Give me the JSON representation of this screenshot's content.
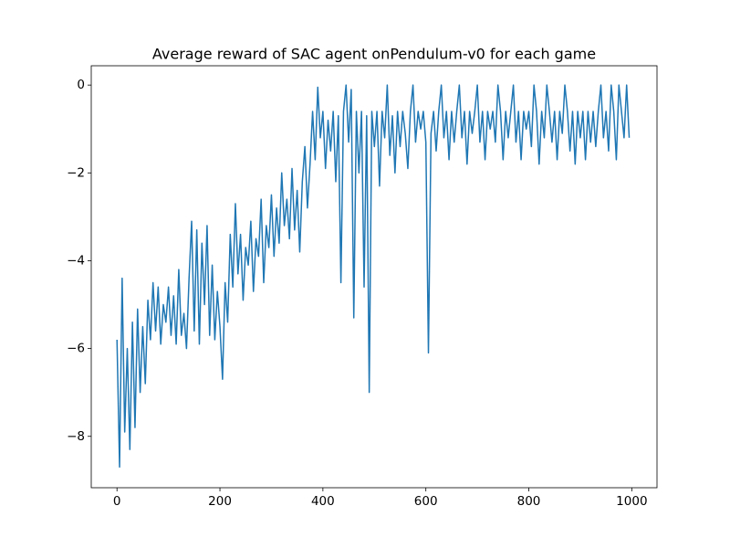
{
  "chart_data": {
    "type": "line",
    "title": "Average reward of SAC agent onPendulum-v0 for each game",
    "x": [
      0,
      5,
      10,
      15,
      20,
      25,
      30,
      35,
      40,
      45,
      50,
      55,
      60,
      65,
      70,
      75,
      80,
      85,
      90,
      95,
      100,
      105,
      110,
      115,
      120,
      125,
      130,
      135,
      140,
      145,
      150,
      155,
      160,
      165,
      170,
      175,
      180,
      185,
      190,
      195,
      200,
      205,
      210,
      215,
      220,
      225,
      230,
      235,
      240,
      245,
      250,
      255,
      260,
      265,
      270,
      275,
      280,
      285,
      290,
      295,
      300,
      305,
      310,
      315,
      320,
      325,
      330,
      335,
      340,
      345,
      350,
      355,
      360,
      365,
      370,
      375,
      380,
      385,
      390,
      395,
      400,
      405,
      410,
      415,
      420,
      425,
      430,
      435,
      440,
      445,
      450,
      455,
      460,
      465,
      470,
      475,
      480,
      485,
      490,
      495,
      500,
      505,
      510,
      515,
      520,
      525,
      530,
      535,
      540,
      545,
      550,
      555,
      560,
      565,
      570,
      575,
      580,
      585,
      590,
      595,
      600,
      605,
      610,
      615,
      620,
      625,
      630,
      635,
      640,
      645,
      650,
      655,
      660,
      665,
      670,
      675,
      680,
      685,
      690,
      695,
      700,
      705,
      710,
      715,
      720,
      725,
      730,
      735,
      740,
      745,
      750,
      755,
      760,
      765,
      770,
      775,
      780,
      785,
      790,
      795,
      800,
      805,
      810,
      815,
      820,
      825,
      830,
      835,
      840,
      845,
      850,
      855,
      860,
      865,
      870,
      875,
      880,
      885,
      890,
      895,
      900,
      905,
      910,
      915,
      920,
      925,
      930,
      935,
      940,
      945,
      950,
      955,
      960,
      965,
      970,
      975,
      980,
      985,
      990,
      995
    ],
    "series": [
      {
        "name": "reward",
        "color": "#1f77b4",
        "values": [
          -5.8,
          -8.7,
          -4.4,
          -7.9,
          -6.0,
          -8.3,
          -5.4,
          -7.8,
          -5.1,
          -7.0,
          -5.5,
          -6.8,
          -4.9,
          -5.8,
          -4.5,
          -5.6,
          -4.6,
          -5.9,
          -5.0,
          -5.4,
          -4.6,
          -5.7,
          -4.8,
          -5.9,
          -4.2,
          -5.7,
          -5.2,
          -6.0,
          -4.4,
          -3.1,
          -5.6,
          -3.3,
          -5.9,
          -3.6,
          -5.0,
          -3.2,
          -5.7,
          -4.1,
          -5.8,
          -4.7,
          -5.5,
          -6.7,
          -4.5,
          -5.4,
          -3.4,
          -4.6,
          -2.7,
          -4.3,
          -3.4,
          -4.9,
          -3.7,
          -4.1,
          -3.1,
          -4.7,
          -3.5,
          -3.9,
          -2.6,
          -4.5,
          -3.2,
          -3.7,
          -2.5,
          -3.9,
          -2.8,
          -3.6,
          -2.0,
          -3.2,
          -2.6,
          -3.5,
          -1.9,
          -3.3,
          -2.4,
          -3.8,
          -2.2,
          -1.4,
          -2.8,
          -1.8,
          -0.6,
          -1.7,
          -0.05,
          -1.2,
          -0.6,
          -1.9,
          -0.8,
          -1.5,
          -0.6,
          -2.2,
          -0.7,
          -4.5,
          -0.6,
          0,
          -1.3,
          -0.1,
          -5.3,
          -0.6,
          -2.0,
          -0.6,
          -4.6,
          -0.7,
          -7.0,
          -0.6,
          -1.4,
          -0.6,
          -2.3,
          -0.6,
          -1.2,
          0,
          -1.6,
          -0.7,
          -2.0,
          -0.6,
          -1.4,
          -0.6,
          -1.1,
          -1.9,
          -0.6,
          0,
          -1.3,
          -0.6,
          -1.0,
          -0.6,
          -1.3,
          -6.1,
          -1.1,
          -0.6,
          -1.5,
          -0.6,
          0,
          -1.2,
          -0.6,
          -1.7,
          -0.6,
          -1.3,
          -0.6,
          0,
          -1.2,
          -0.6,
          -1.8,
          -0.6,
          -1.1,
          -0.6,
          0,
          -1.3,
          -0.6,
          -1.7,
          -0.6,
          -1.0,
          -0.6,
          -1.3,
          0,
          -0.6,
          -1.7,
          -0.6,
          -1.2,
          -0.6,
          0,
          -1.3,
          -0.6,
          -1.7,
          -0.6,
          -1.0,
          -0.6,
          -1.4,
          0,
          -0.6,
          -1.8,
          -0.6,
          -1.2,
          0,
          -0.6,
          -1.3,
          -0.6,
          -1.7,
          -0.6,
          -1.1,
          0,
          -0.6,
          -1.5,
          -0.6,
          -1.8,
          -0.6,
          -1.2,
          -0.6,
          -1.7,
          -0.6,
          -1.3,
          -0.6,
          -1.4,
          -0.6,
          0,
          -1.2,
          -0.6,
          -1.5,
          0,
          -0.6,
          -1.7,
          0,
          -0.6,
          -1.2,
          0,
          -1.2
        ]
      }
    ],
    "xlim": [
      -50,
      1049
    ],
    "ylim": [
      -9.17,
      0.44
    ],
    "xticks": [
      0,
      200,
      400,
      600,
      800,
      1000
    ],
    "yticks": [
      {
        "value": -8,
        "label": "−8"
      },
      {
        "value": -6,
        "label": "−6"
      },
      {
        "value": -4,
        "label": "−4"
      },
      {
        "value": -2,
        "label": "−2"
      },
      0
    ]
  }
}
